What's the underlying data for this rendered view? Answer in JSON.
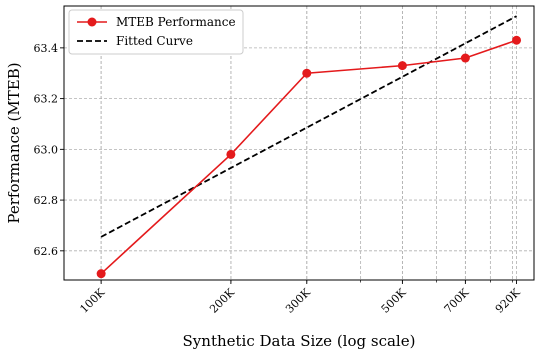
{
  "chart_data": {
    "type": "line",
    "xlabel": "Synthetic Data Size (log scale)",
    "ylabel": "Performance (MTEB)",
    "x_scale": "log",
    "xlim": [
      82000,
      1010000
    ],
    "ylim": [
      62.485,
      63.565
    ],
    "grid": true,
    "legend_position": "top-left",
    "x_ticks": [
      {
        "value": 100000,
        "label": "100K"
      },
      {
        "value": 200000,
        "label": "200K"
      },
      {
        "value": 300000,
        "label": "300K"
      },
      {
        "value": 500000,
        "label": "500K"
      },
      {
        "value": 700000,
        "label": "700K"
      },
      {
        "value": 920000,
        "label": "920K"
      }
    ],
    "y_ticks": [
      {
        "value": 62.6,
        "label": "62.6"
      },
      {
        "value": 62.8,
        "label": "62.8"
      },
      {
        "value": 63.0,
        "label": "63.0"
      },
      {
        "value": 63.2,
        "label": "63.2"
      },
      {
        "value": 63.4,
        "label": "63.4"
      }
    ],
    "series": [
      {
        "name": "MTEB Performance",
        "style": "solid-markers",
        "color": "#e41a1c",
        "x": [
          100000,
          200000,
          300000,
          500000,
          700000,
          920000
        ],
        "y": [
          62.51,
          62.98,
          63.3,
          63.33,
          63.36,
          63.43
        ]
      },
      {
        "name": "Fitted Curve",
        "style": "dashed",
        "color": "#000000",
        "x": [
          100000,
          920000
        ],
        "y": [
          62.655,
          63.525
        ]
      }
    ]
  }
}
